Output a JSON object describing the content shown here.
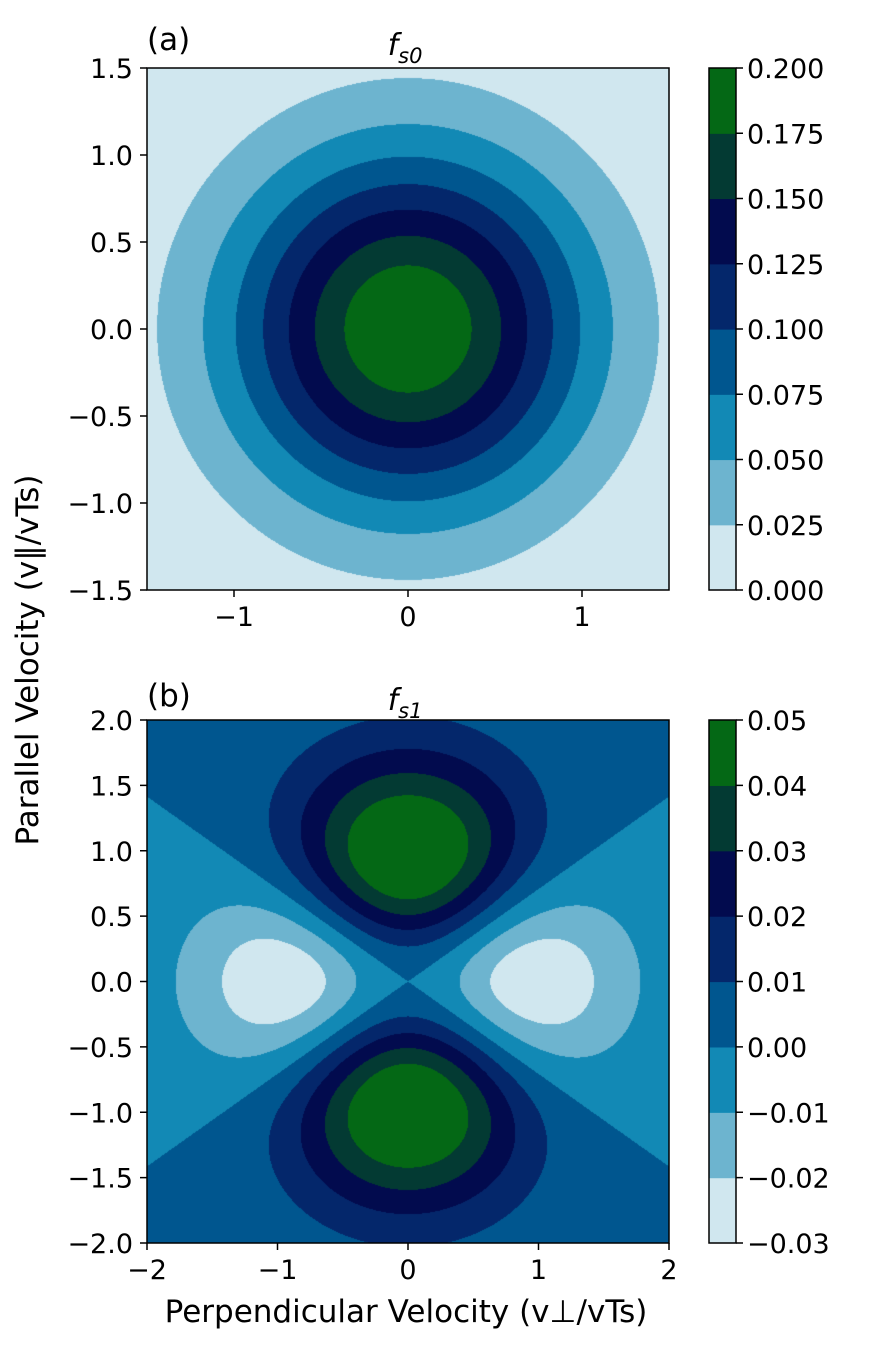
{
  "figure": {
    "xlabel": "Perpendicular Velocity (v⊥/vTs)",
    "ylabel": "Parallel Velocity (v‖/vTs)"
  },
  "chart_data": [
    {
      "type": "contour",
      "panel_label": "(a)",
      "title_main": "f",
      "title_sub": "s0",
      "function": "gaussian_r",
      "xlim": [
        -1.5,
        1.5
      ],
      "ylim": [
        -1.5,
        1.5
      ],
      "xticks": [
        -1,
        0,
        1
      ],
      "xtick_labels": [
        "−1",
        "0",
        "1"
      ],
      "yticks": [
        1.5,
        1.0,
        0.5,
        0.0,
        -0.5,
        -1.0,
        -1.5
      ],
      "ytick_labels": [
        "1.5",
        "1.0",
        "0.5",
        "0.0",
        "−0.5",
        "−1.0",
        "−1.5"
      ],
      "levels": [
        0.0,
        0.025,
        0.05,
        0.075,
        0.1,
        0.125,
        0.15,
        0.175,
        0.2
      ],
      "level_labels": [
        "0.000",
        "0.025",
        "0.050",
        "0.075",
        "0.100",
        "0.125",
        "0.150",
        "0.175",
        "0.200"
      ],
      "colors": [
        "#d0e7ef",
        "#6db4cf",
        "#1289b5",
        "#00568f",
        "#04276b",
        "#020b4e",
        "#033a33",
        "#046815"
      ]
    },
    {
      "type": "contour",
      "panel_label": "(b)",
      "title_main": "f",
      "title_sub": "s1",
      "function": "p2_gaussian",
      "xlim": [
        -2,
        2
      ],
      "ylim": [
        -2,
        2
      ],
      "xticks": [
        -2,
        -1,
        0,
        1,
        2
      ],
      "xtick_labels": [
        "−2",
        "−1",
        "0",
        "1",
        "2"
      ],
      "yticks": [
        2.0,
        1.5,
        1.0,
        0.5,
        0.0,
        -0.5,
        -1.0,
        -1.5,
        -2.0
      ],
      "ytick_labels": [
        "2.0",
        "1.5",
        "1.0",
        "0.5",
        "0.0",
        "−0.5",
        "−1.0",
        "−1.5",
        "−2.0"
      ],
      "levels": [
        -0.03,
        -0.02,
        -0.01,
        0.0,
        0.01,
        0.02,
        0.03,
        0.04,
        0.05
      ],
      "level_labels": [
        "−0.03",
        "−0.02",
        "−0.01",
        "0.00",
        "0.01",
        "0.02",
        "0.03",
        "0.04",
        "0.05"
      ],
      "colors": [
        "#d0e7ef",
        "#6db4cf",
        "#1289b5",
        "#00568f",
        "#04276b",
        "#020b4e",
        "#033a33",
        "#046815"
      ]
    }
  ]
}
